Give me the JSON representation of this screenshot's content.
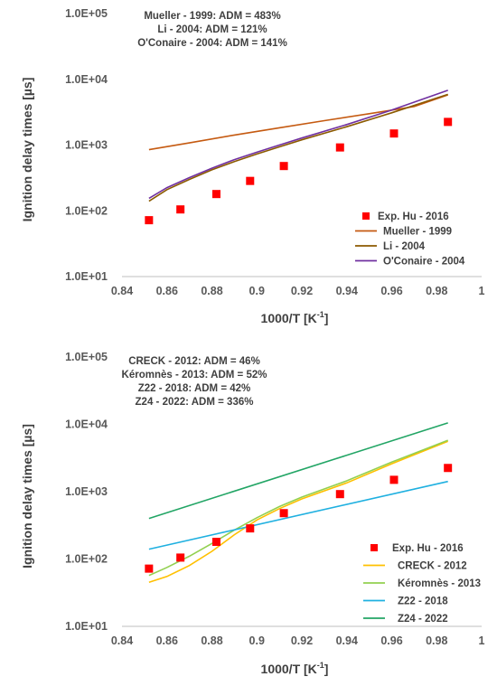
{
  "chart_data": [
    {
      "type": "scatter",
      "xlabel_main": "1000/T [K",
      "xlabel_sup": "-1",
      "xlabel_end": "]",
      "ylabel": "Ignition delay times [µs]",
      "y_scale": "log",
      "xlim": [
        0.84,
        1.0
      ],
      "ylim": [
        10,
        100000
      ],
      "x_ticks": [
        "0.84",
        "0.86",
        "0.88",
        "0.9",
        "0.92",
        "0.94",
        "0.96",
        "0.98",
        "1"
      ],
      "y_ticks": [
        "1.0E+01",
        "1.0E+02",
        "1.0E+03",
        "1.0E+04",
        "1.0E+05"
      ],
      "annotations": [
        "Mueller - 1999: ADM = 483%",
        "Li - 2004: ADM = 121%",
        "O'Conaire - 2004: ADM = 141%"
      ],
      "legend_position": "bottom-right",
      "experiment": {
        "name": "Exp. Hu - 2016",
        "color": "#ff0000",
        "x": [
          0.852,
          0.866,
          0.882,
          0.897,
          0.912,
          0.937,
          0.961,
          0.985
        ],
        "y": [
          72,
          105,
          180,
          285,
          480,
          920,
          1500,
          2250
        ]
      },
      "series": [
        {
          "name": "Mueller - 1999",
          "color": "#c55a11",
          "x": [
            0.852,
            0.87,
            0.89,
            0.91,
            0.93,
            0.95,
            0.97,
            0.985
          ],
          "y": [
            850,
            1080,
            1420,
            1830,
            2350,
            3000,
            3850,
            5800
          ]
        },
        {
          "name": "Li - 2004",
          "color": "#8b5a00",
          "x": [
            0.852,
            0.86,
            0.87,
            0.88,
            0.89,
            0.9,
            0.91,
            0.92,
            0.94,
            0.96,
            0.985
          ],
          "y": [
            140,
            210,
            300,
            420,
            560,
            730,
            940,
            1200,
            1900,
            3100,
            5900
          ]
        },
        {
          "name": "O'Conaire - 2004",
          "color": "#7030a0",
          "x": [
            0.852,
            0.86,
            0.87,
            0.88,
            0.89,
            0.9,
            0.91,
            0.92,
            0.94,
            0.96,
            0.985
          ],
          "y": [
            155,
            225,
            320,
            445,
            600,
            780,
            1000,
            1280,
            2050,
            3400,
            6800
          ]
        }
      ]
    },
    {
      "type": "scatter",
      "xlabel_main": "1000/T [K",
      "xlabel_sup": "-1",
      "xlabel_end": "]",
      "ylabel": "Ignition delay times [µs]",
      "y_scale": "log",
      "xlim": [
        0.84,
        1.0
      ],
      "ylim": [
        10,
        100000
      ],
      "x_ticks": [
        "0.84",
        "0.86",
        "0.88",
        "0.9",
        "0.92",
        "0.94",
        "0.96",
        "0.98",
        "1"
      ],
      "y_ticks": [
        "1.0E+01",
        "1.0E+02",
        "1.0E+03",
        "1.0E+04",
        "1.0E+05"
      ],
      "annotations": [
        "CRECK - 2012: ADM = 46%",
        "Kéromnès - 2013: ADM = 52%",
        "Z22 - 2018: ADM = 42%",
        "Z24 - 2022: ADM = 336%"
      ],
      "legend_position": "bottom-right",
      "experiment": {
        "name": "Exp. Hu - 2016",
        "color": "#ff0000",
        "x": [
          0.852,
          0.866,
          0.882,
          0.897,
          0.912,
          0.937,
          0.961,
          0.985
        ],
        "y": [
          72,
          105,
          180,
          285,
          480,
          920,
          1500,
          2250
        ]
      },
      "series": [
        {
          "name": "CRECK - 2012",
          "color": "#ffc000",
          "x": [
            0.852,
            0.86,
            0.87,
            0.88,
            0.89,
            0.9,
            0.91,
            0.92,
            0.94,
            0.96,
            0.985
          ],
          "y": [
            45,
            55,
            80,
            130,
            230,
            380,
            560,
            780,
            1350,
            2600,
            5600
          ]
        },
        {
          "name": "Kéromnès - 2013",
          "color": "#92d050",
          "x": [
            0.852,
            0.86,
            0.87,
            0.88,
            0.89,
            0.9,
            0.91,
            0.92,
            0.94,
            0.96,
            0.985
          ],
          "y": [
            57,
            75,
            110,
            170,
            270,
            410,
            600,
            830,
            1450,
            2750,
            5800
          ]
        },
        {
          "name": "Z22 - 2018",
          "color": "#1fb0e0",
          "x": [
            0.852,
            0.985
          ],
          "y": [
            140,
            1420
          ]
        },
        {
          "name": "Z24 - 2022",
          "color": "#22a565",
          "x": [
            0.852,
            0.985
          ],
          "y": [
            400,
            10500
          ]
        }
      ]
    }
  ]
}
